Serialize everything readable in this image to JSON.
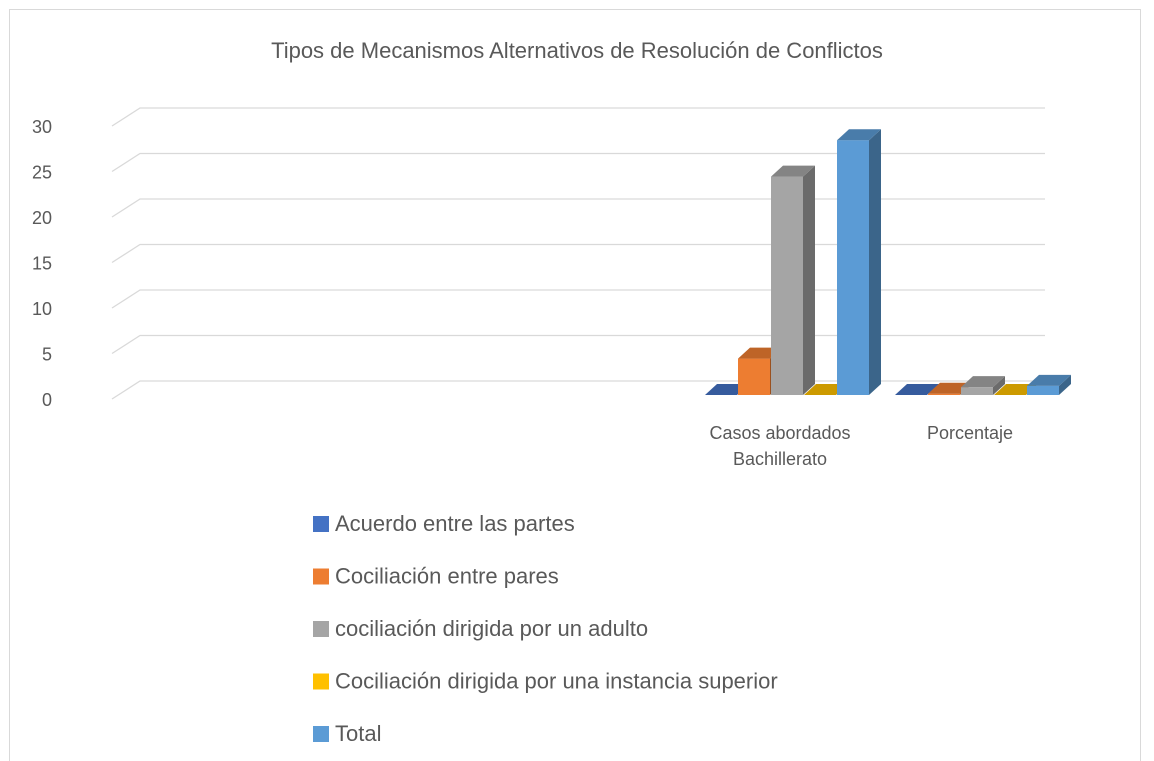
{
  "chart_data": {
    "type": "bar3d",
    "title": "Tipos de Mecanismos Alternativos de Resolución de Conflictos",
    "categories": [
      null,
      null,
      null,
      "Casos abordados Bachillerato",
      "Porcentaje"
    ],
    "series": [
      {
        "name": "Acuerdo entre las partes",
        "color": "#4472c4",
        "values": [
          null,
          null,
          null,
          0,
          0
        ]
      },
      {
        "name": "Cociliación entre pares",
        "color": "#ed7d31",
        "values": [
          null,
          null,
          null,
          4,
          0.14
        ]
      },
      {
        "name": "cociliación dirigida por un adulto",
        "color": "#a5a5a5",
        "values": [
          null,
          null,
          null,
          24,
          0.86
        ]
      },
      {
        "name": "Cociliación dirigida por una instancia superior",
        "color": "#ffc000",
        "values": [
          null,
          null,
          null,
          0,
          0
        ]
      },
      {
        "name": "Total",
        "color": "#5b9bd5",
        "values": [
          null,
          null,
          null,
          28,
          1
        ]
      }
    ],
    "ylim": [
      0,
      30
    ],
    "yticks": [
      0,
      5,
      10,
      15,
      20,
      25,
      30
    ],
    "grid": true,
    "legend": "bottom"
  }
}
